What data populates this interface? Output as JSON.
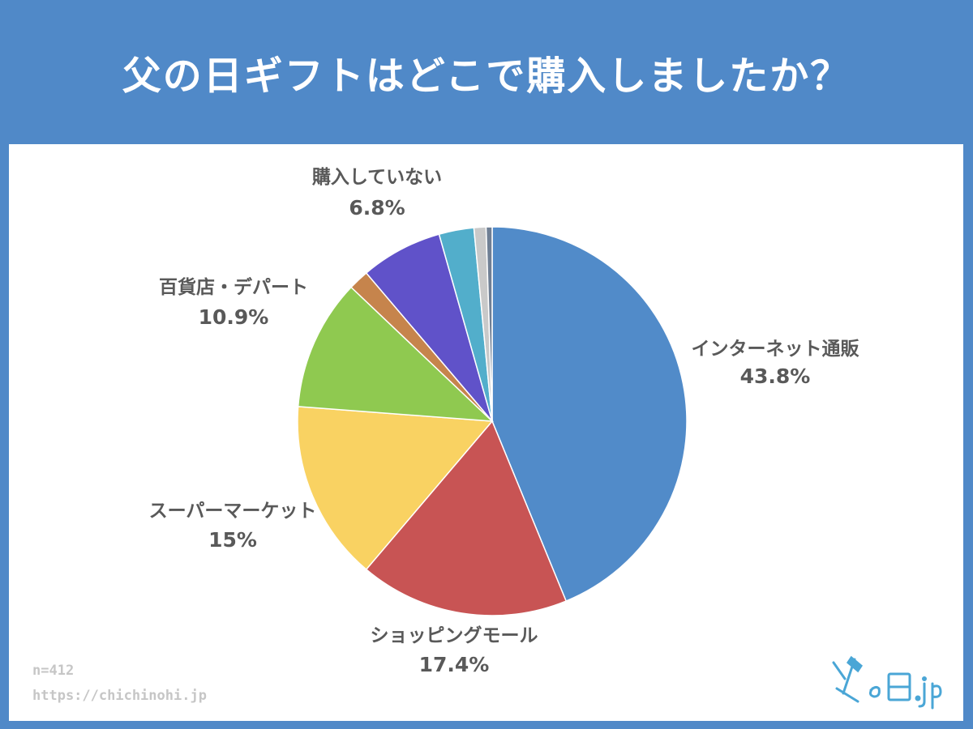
{
  "title": "父の日ギフトはどこで購入しましたか？",
  "footnotes": {
    "sample_size": "n=412",
    "source_url": "https://chichinohi.jp"
  },
  "logo": {
    "text": "父の日.jp",
    "icon": "hammer-logo-icon",
    "color": "#4aa6d6"
  },
  "colors": {
    "header_bg": "#5089c8",
    "panel_bg": "#ffffff",
    "label_text": "#595959"
  },
  "chart_data": {
    "type": "pie",
    "start_angle": "12 o'clock",
    "direction": "clockwise",
    "slices": [
      {
        "label": "インターネット通販",
        "value": 43.8,
        "display": "43.8%",
        "color": "#518bc9",
        "labeled": true
      },
      {
        "label": "ショッピングモール",
        "value": 17.4,
        "display": "17.4%",
        "color": "#c85454",
        "labeled": true
      },
      {
        "label": "スーパーマーケット",
        "value": 15.0,
        "display": "15%",
        "color": "#f9d262",
        "labeled": true
      },
      {
        "label": "百貨店・デパート",
        "value": 10.9,
        "display": "10.9%",
        "color": "#8fc950",
        "labeled": true
      },
      {
        "label": "",
        "value": 1.7,
        "display": "",
        "color": "#c6844c",
        "labeled": false
      },
      {
        "label": "購入していない",
        "value": 6.8,
        "display": "6.8%",
        "color": "#6052c9",
        "labeled": true
      },
      {
        "label": "",
        "value": 2.9,
        "display": "",
        "color": "#52aecb",
        "labeled": false
      },
      {
        "label": "",
        "value": 1.0,
        "display": "",
        "color": "#c9c9c9",
        "labeled": false
      },
      {
        "label": "",
        "value": 0.5,
        "display": "",
        "color": "#6f7f94",
        "labeled": false
      }
    ]
  }
}
